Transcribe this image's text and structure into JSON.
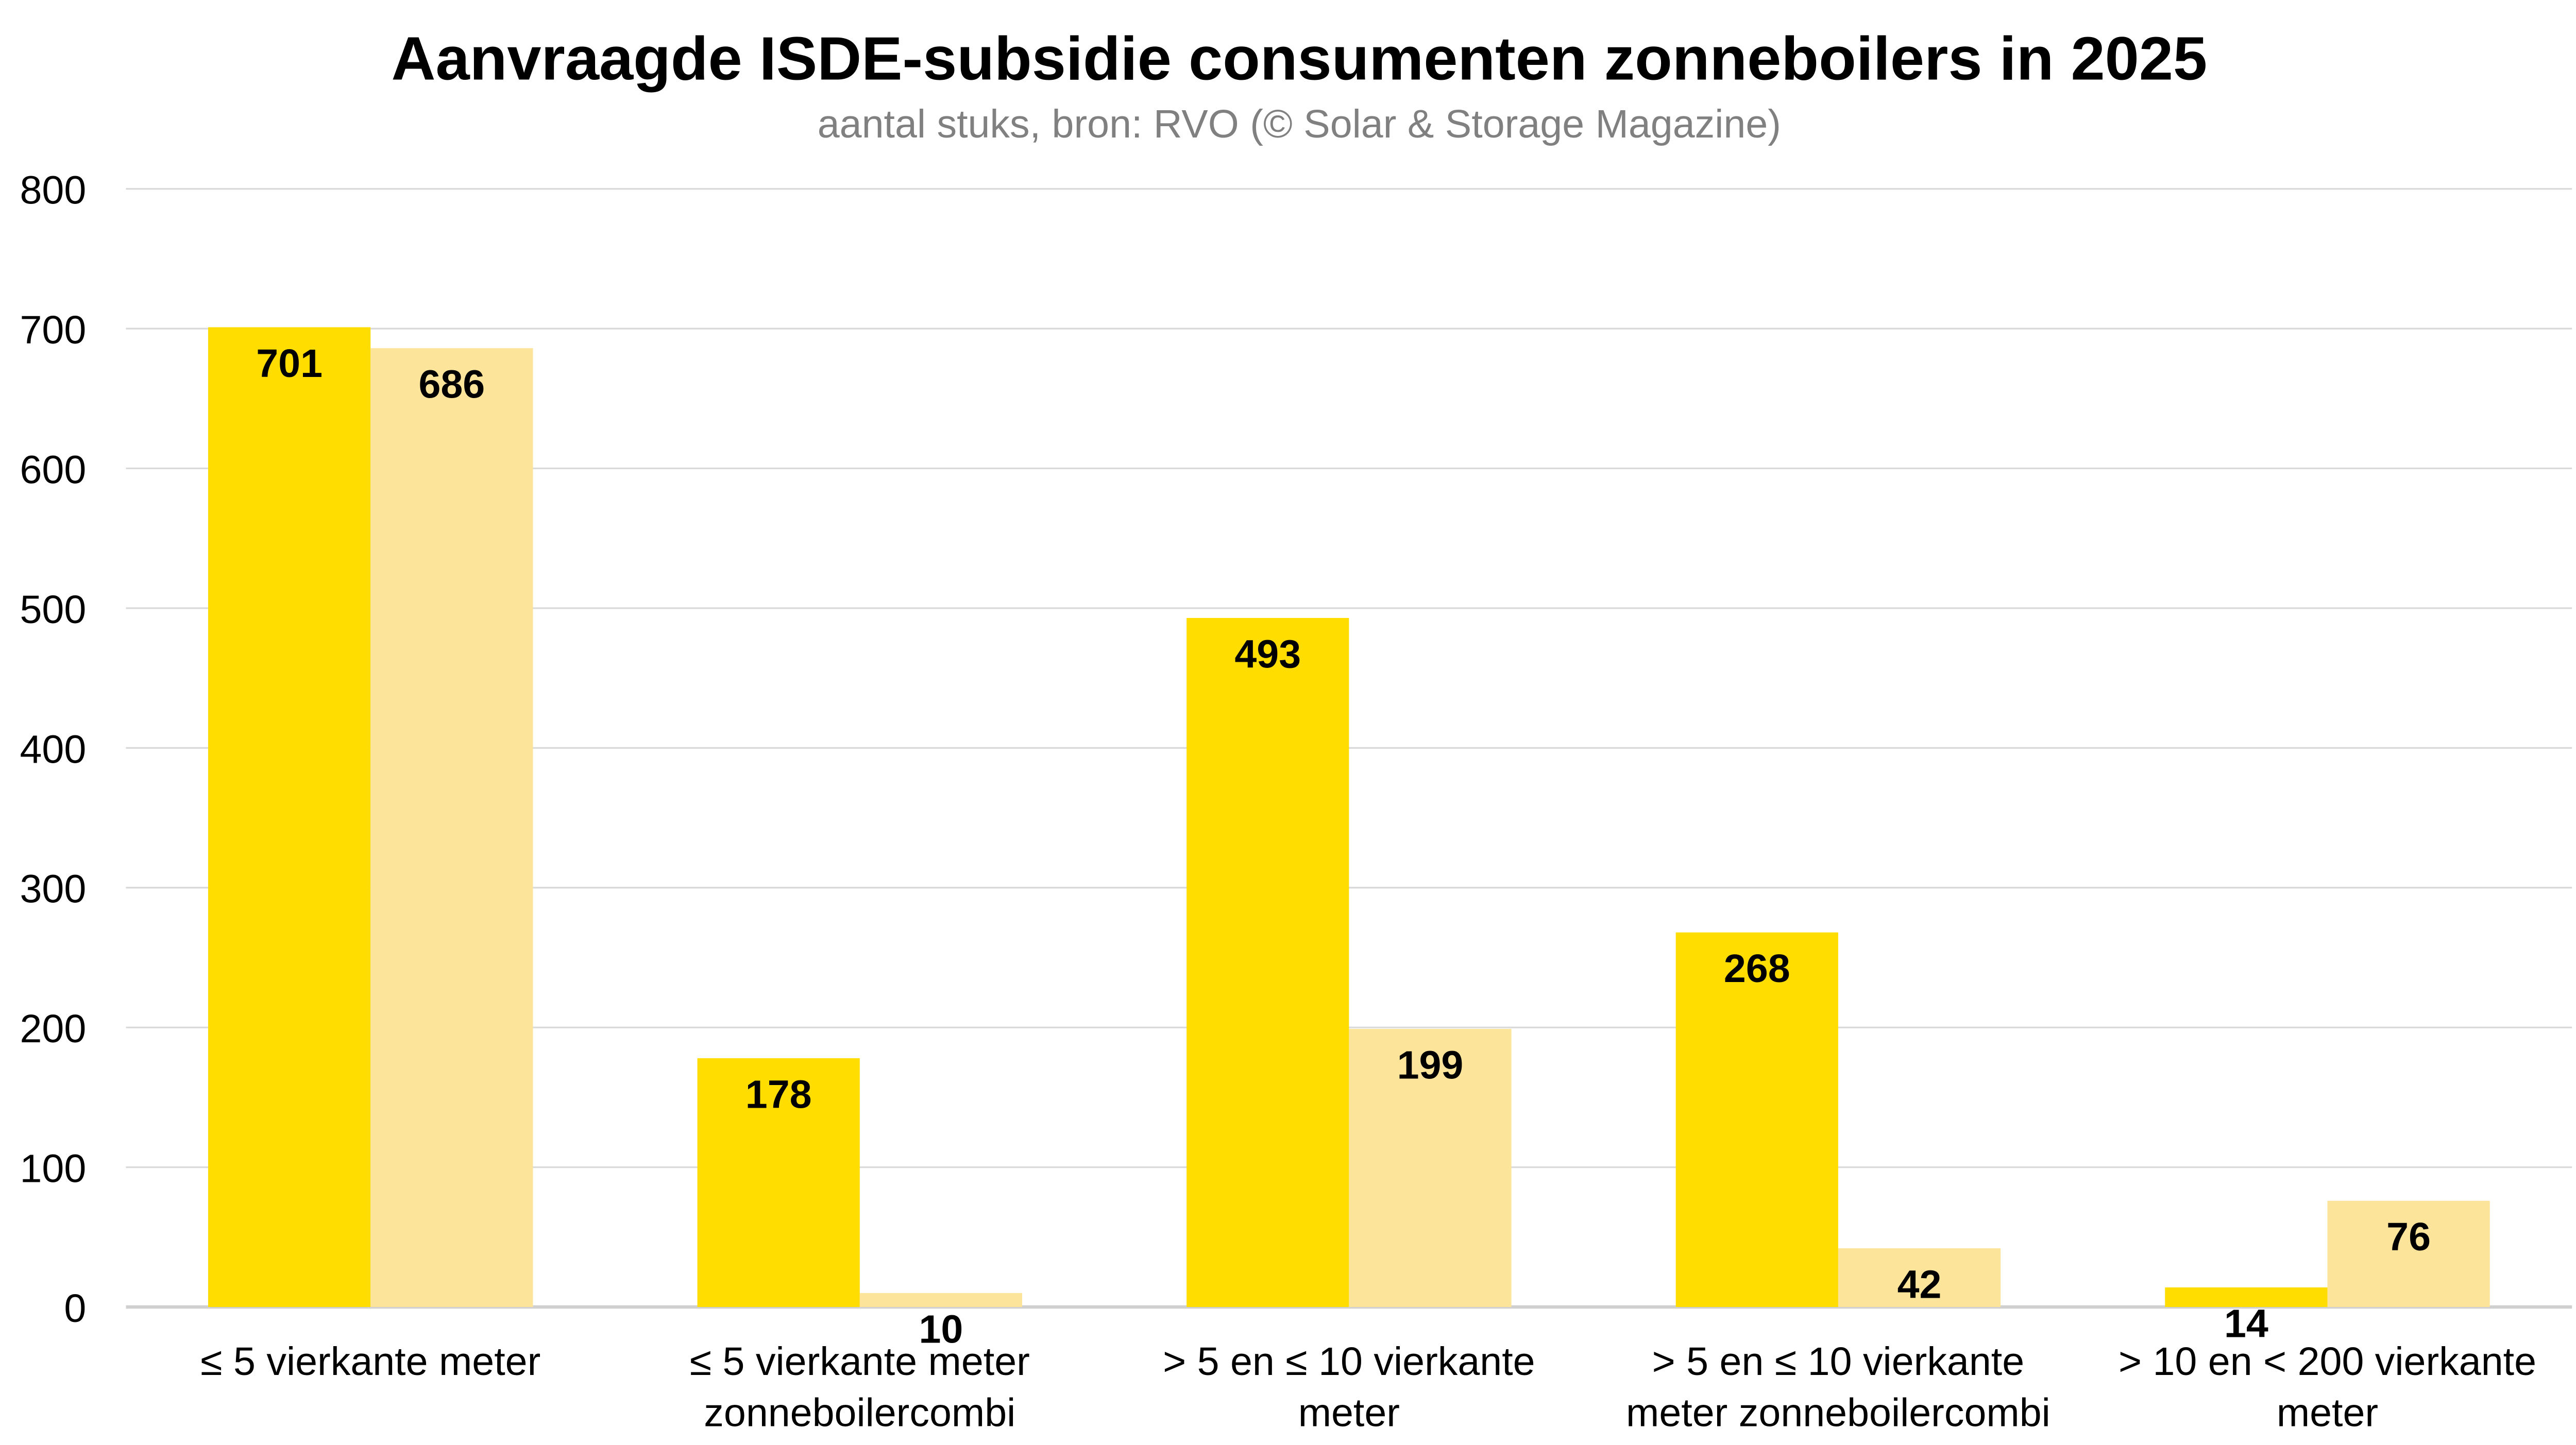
{
  "chart_data": {
    "type": "bar",
    "title": "Aanvraagde ISDE-subsidie consumenten zonneboilers in 2025",
    "subtitle": "aantal stuks, bron: RVO (© Solar & Storage Magazine)",
    "xlabel": "",
    "ylabel": "",
    "ylim": [
      0,
      800
    ],
    "yticks": [
      "0",
      "100",
      "200",
      "300",
      "400",
      "500",
      "600",
      "700",
      "800"
    ],
    "grid": true,
    "legend": "none",
    "categories": [
      [
        "≤ 5 vierkante meter"
      ],
      [
        "≤ 5 vierkante meter",
        "zonneboilercombi"
      ],
      [
        "> 5 en ≤ 10 vierkante",
        "meter"
      ],
      [
        "> 5 en ≤ 10 vierkante",
        "meter zonneboilercombi"
      ],
      [
        "> 10 en < 200 vierkante",
        "meter"
      ]
    ],
    "series": [
      {
        "color": "#FFDD00",
        "values": [
          701,
          178,
          493,
          268,
          14
        ]
      },
      {
        "color": "#FCE59A",
        "values": [
          686,
          10,
          199,
          42,
          76
        ]
      }
    ]
  }
}
